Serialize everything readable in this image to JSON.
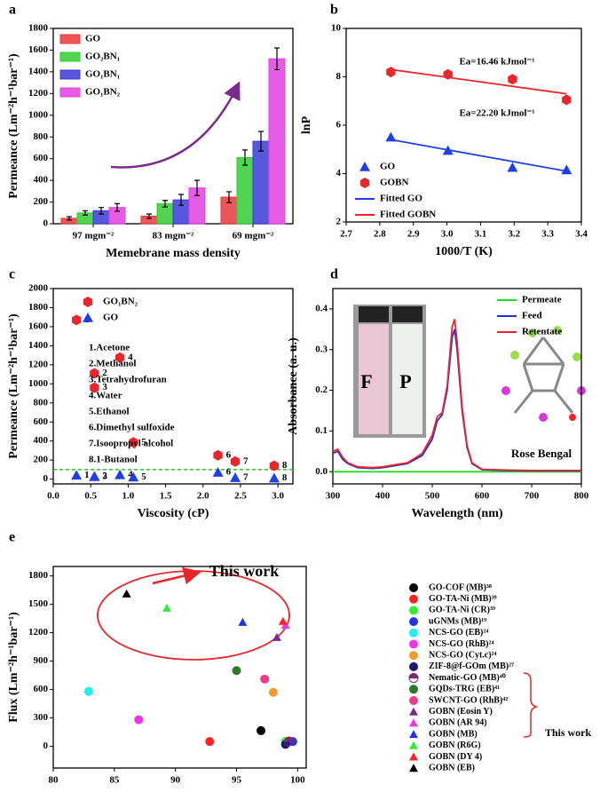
{
  "chart_data": [
    {
      "type": "bar",
      "panel": "a",
      "x_label": "Memebrane mass density",
      "y_label": "Permeance (Lm⁻²h⁻¹bar⁻¹)",
      "categories": [
        "97 mgm⁻²",
        "83 mgm⁻²",
        "69 mgm⁻²"
      ],
      "series": [
        {
          "name": "GO",
          "color": "#e8393b",
          "values": [
            50,
            70,
            245
          ],
          "errors": [
            15,
            20,
            50
          ]
        },
        {
          "name": "GO₂BN₁",
          "color": "#33cc33",
          "values": [
            100,
            185,
            610
          ],
          "errors": [
            20,
            30,
            70
          ]
        },
        {
          "name": "GO₁BN₁",
          "color": "#3b3bd6",
          "values": [
            120,
            220,
            760
          ],
          "errors": [
            30,
            50,
            90
          ]
        },
        {
          "name": "GO₁BN₂",
          "color": "#e040e0",
          "values": [
            150,
            330,
            1520
          ],
          "errors": [
            35,
            70,
            100
          ]
        }
      ],
      "ylim": [
        0,
        1800
      ],
      "yticks": [
        0,
        200,
        400,
        600,
        800,
        1000,
        1200,
        1400,
        1600,
        1800
      ]
    },
    {
      "type": "scatter",
      "panel": "b",
      "x_label": "1000/T (K)",
      "y_label": "lnP",
      "series": [
        {
          "name": "GO",
          "color": "#1f3fe6",
          "marker": "triangle",
          "x": [
            2.833,
            3.003,
            3.195,
            3.356
          ],
          "values": [
            5.5,
            4.95,
            4.25,
            4.15
          ]
        },
        {
          "name": "GOBN",
          "color": "#e8262b",
          "marker": "hexagon",
          "x": [
            2.833,
            3.003,
            3.195,
            3.356
          ],
          "values": [
            8.2,
            8.1,
            7.9,
            7.05
          ]
        },
        {
          "name": "Fitted GO",
          "color": "#1f3fe6",
          "marker": "line",
          "x": [
            2.833,
            3.356
          ],
          "values": [
            5.4,
            4.1
          ]
        },
        {
          "name": "Fitted GOBN",
          "color": "#e8262b",
          "marker": "line",
          "x": [
            2.833,
            3.356
          ],
          "values": [
            8.3,
            7.3
          ]
        }
      ],
      "annotations": [
        {
          "text": "Ea=16.46 kJmol⁻¹",
          "color": "#e8262b"
        },
        {
          "text": "Ea=22.20 kJmol⁻¹",
          "color": "#1f3fe6"
        }
      ],
      "xlim": [
        2.7,
        3.4
      ],
      "xticks": [
        2.7,
        2.8,
        2.9,
        {
          "value": 3,
          "label": "3.0"
        },
        3.1,
        3.2,
        3.3,
        3.4
      ],
      "ylim": [
        2,
        10
      ],
      "yticks": [
        2,
        4,
        6,
        8,
        10
      ]
    },
    {
      "type": "scatter",
      "panel": "c",
      "x_label": "Viscosity (cP)",
      "y_label": "Permeance (Lm⁻²h⁻¹bar⁻¹)",
      "series": [
        {
          "name": "GO₁BN₂",
          "color": "#e8262b",
          "marker": "hexagon",
          "x": [
            0.31,
            0.55,
            0.55,
            0.89,
            1.07,
            2.2,
            2.43,
            2.95
          ],
          "values": [
            1670,
            1110,
            960,
            1275,
            385,
            250,
            185,
            140
          ]
        },
        {
          "name": "GO",
          "color": "#1f3fe6",
          "marker": "triangle",
          "x": [
            0.31,
            0.55,
            0.55,
            0.89,
            1.07,
            2.2,
            2.43,
            2.95
          ],
          "values": [
            40,
            30,
            25,
            45,
            20,
            70,
            15,
            10
          ]
        }
      ],
      "point_labels": [
        "1",
        "2",
        "3",
        "4",
        "5",
        "6",
        "7",
        "8"
      ],
      "reference_line": {
        "value": 100,
        "color": "#22cc22"
      },
      "annotations": [
        {
          "text": "1.Acetone",
          "color": "#000000"
        },
        {
          "text": "2.Methanol",
          "color": "#000000"
        },
        {
          "text": "3.Tetrahydrofuran",
          "color": "#000000"
        },
        {
          "text": "4.Water",
          "color": "#000000"
        },
        {
          "text": "5.Ethanol",
          "color": "#000000"
        },
        {
          "text": "6.Dimethyl sulfoxide",
          "color": "#000000"
        },
        {
          "text": "7.Isoopropyl alcohol",
          "color": "#000000"
        },
        {
          "text": "8.1-Butanol",
          "color": "#000000"
        }
      ],
      "xlim": [
        0,
        3.2
      ],
      "xticks": [
        {
          "value": 0,
          "label": "0.0"
        },
        0.5,
        {
          "value": 1,
          "label": "1.0"
        },
        1.5,
        {
          "value": 2,
          "label": "2.0"
        },
        2.5,
        {
          "value": 3,
          "label": "3.0"
        }
      ],
      "ylim": [
        -50,
        2000
      ],
      "yticks": [
        0,
        200,
        400,
        600,
        800,
        1000,
        1200,
        1400,
        1600,
        1800,
        2000
      ]
    },
    {
      "type": "line",
      "panel": "d",
      "x_label": "Wavelength (nm)",
      "y_label": "Absorbance (a. u.)",
      "x": [
        300,
        310,
        320,
        330,
        350,
        380,
        400,
        450,
        480,
        500,
        510,
        520,
        530,
        540,
        545,
        550,
        560,
        570,
        580,
        600,
        650,
        700,
        750,
        800
      ],
      "series": [
        {
          "name": "Permeate",
          "color": "#22dd22",
          "values": [
            0,
            0,
            0,
            0,
            0,
            0,
            0,
            0,
            0,
            0,
            0,
            0,
            0,
            0,
            0,
            0,
            0,
            0,
            0,
            0,
            0,
            0,
            0,
            0
          ]
        },
        {
          "name": "Feed",
          "color": "#1f2fd6",
          "values": [
            0.045,
            0.05,
            0.03,
            0.02,
            0.01,
            0.008,
            0.01,
            0.02,
            0.04,
            0.08,
            0.125,
            0.14,
            0.2,
            0.33,
            0.35,
            0.3,
            0.15,
            0.06,
            0.02,
            0.005,
            0.003,
            0.002,
            0.002,
            0.002
          ]
        },
        {
          "name": "Retentate",
          "color": "#e8262b",
          "values": [
            0.05,
            0.055,
            0.035,
            0.022,
            0.012,
            0.01,
            0.012,
            0.022,
            0.045,
            0.09,
            0.135,
            0.145,
            0.21,
            0.355,
            0.375,
            0.32,
            0.16,
            0.065,
            0.022,
            0.006,
            0.004,
            0.003,
            0.003,
            0.003
          ]
        }
      ],
      "annotations": [
        {
          "text": "F",
          "color": "#1f3fe6"
        },
        {
          "text": "P",
          "color": "#33dd66"
        },
        {
          "text": "Rose Bengal",
          "color": "#000000"
        }
      ],
      "xlim": [
        300,
        800
      ],
      "xticks": [
        300,
        400,
        500,
        600,
        700,
        800
      ],
      "ylim": [
        -0.03,
        0.45
      ],
      "yticks": [
        {
          "value": 0,
          "label": "0.0"
        },
        0.1,
        0.2,
        0.3,
        0.4
      ]
    },
    {
      "type": "scatter",
      "panel": "e",
      "x_label": "Rejection (%)",
      "y_label": "Flux (Lm⁻²h⁻¹bar⁻¹)",
      "series": [
        {
          "name": "GO-COF (MB)³⁸",
          "color": "#000000",
          "marker": "circle",
          "x": [
            97
          ],
          "values": [
            165
          ]
        },
        {
          "name": "GO-TA-Ni (MB)³⁹",
          "color": "#ff2222",
          "marker": "circle",
          "x": [
            92.8
          ],
          "values": [
            50
          ]
        },
        {
          "name": "GO-TA-Ni (CR)³⁹",
          "color": "#33ee33",
          "marker": "circle",
          "x": [
            99
          ],
          "values": [
            50
          ]
        },
        {
          "name": "uGNMs (MB)¹⁹",
          "color": "#2233ee",
          "marker": "circle",
          "x": [
            99.6
          ],
          "values": [
            50
          ]
        },
        {
          "name": "NCS-GO (EB)²⁴",
          "color": "#22eeee",
          "marker": "circle",
          "x": [
            82.9
          ],
          "values": [
            580
          ]
        },
        {
          "name": "NCS-GO (RhB)²⁴",
          "color": "#ee33ee",
          "marker": "circle",
          "x": [
            87
          ],
          "values": [
            280
          ]
        },
        {
          "name": "NCS-GO (Cyt.c)²⁴",
          "color": "#f59a2a",
          "marker": "circle",
          "x": [
            98
          ],
          "values": [
            570
          ]
        },
        {
          "name": "ZIF-8@f-GOm  (MB)²⁷",
          "color": "#1a1a70",
          "marker": "circle",
          "x": [
            99
          ],
          "values": [
            20
          ]
        },
        {
          "name": "Nematic-GO (MB)⁴⁰",
          "color": "#7a2a6a",
          "marker": "half-circle",
          "x": [
            99.3
          ],
          "values": [
            50
          ]
        },
        {
          "name": "GQDs-TRG (EB)⁴¹",
          "color": "#2a7a2a",
          "marker": "circle",
          "x": [
            95
          ],
          "values": [
            800
          ]
        },
        {
          "name": "SWCNT-GO (RhB)⁴²",
          "color": "#ee3a8a",
          "marker": "circle",
          "x": [
            97.3
          ],
          "values": [
            710
          ]
        },
        {
          "name": "GOBN (Eosin Y)",
          "color": "#7a2a8a",
          "marker": "triangle",
          "label_color": "#e8262b",
          "x": [
            98.3
          ],
          "values": [
            1150
          ]
        },
        {
          "name": "GOBN (AR 94)",
          "color": "#ee33ee",
          "marker": "triangle",
          "label_color": "#e8262b",
          "x": [
            99
          ],
          "values": [
            1280
          ]
        },
        {
          "name": "GOBN (MB)",
          "color": "#2233ee",
          "marker": "triangle",
          "label_color": "#e8262b",
          "x": [
            95.5
          ],
          "values": [
            1310
          ]
        },
        {
          "name": "GOBN (R6G)",
          "color": "#33ee33",
          "marker": "triangle",
          "label_color": "#e8262b",
          "x": [
            89.3
          ],
          "values": [
            1460
          ]
        },
        {
          "name": "GOBN (DY 4)",
          "color": "#ff2222",
          "marker": "triangle",
          "label_color": "#e8262b",
          "x": [
            98.8
          ],
          "values": [
            1320
          ]
        },
        {
          "name": "GOBN (EB)",
          "color": "#000000",
          "marker": "triangle",
          "label_color": "#e8262b",
          "x": [
            86
          ],
          "values": [
            1610
          ]
        }
      ],
      "annotations": [
        {
          "text": "This work",
          "color": "#e8262b"
        },
        {
          "text": "This work",
          "color": "#e8262b"
        }
      ],
      "xlim": [
        80,
        100.7
      ],
      "xticks": [
        80,
        85,
        90,
        95,
        100
      ],
      "ylim": [
        -230,
        1900
      ],
      "yticks": [
        0,
        300,
        600,
        900,
        1200,
        1500,
        1800
      ]
    }
  ]
}
